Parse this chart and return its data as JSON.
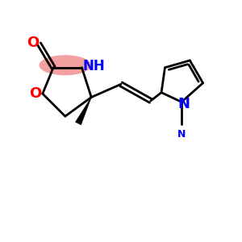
{
  "background_color": "#ffffff",
  "bond_color": "#000000",
  "o_color": "#ff0000",
  "n_color": "#0000ff",
  "nh_highlight_color": "#f08080",
  "line_width": 2.0,
  "figsize": [
    3.0,
    3.0
  ],
  "dpi": 100,
  "xlim": [
    0,
    10
  ],
  "ylim": [
    0,
    10
  ]
}
